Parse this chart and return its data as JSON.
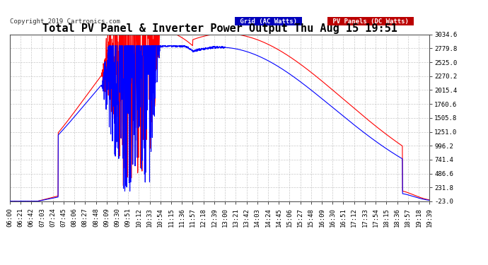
{
  "title": "Total PV Panel & Inverter Power Output Thu Aug 15 19:51",
  "copyright": "Copyright 2019 Cartronics.com",
  "legend_grid": "Grid (AC Watts)",
  "legend_pv": "PV Panels (DC Watts)",
  "grid_color": "#0000FF",
  "pv_color": "#FF0000",
  "background_color": "#ffffff",
  "plot_bg_color": "#ffffff",
  "grid_line_color": "#bbbbbb",
  "yticks": [
    -23.0,
    231.8,
    486.6,
    741.4,
    996.2,
    1251.0,
    1505.8,
    1760.6,
    2015.4,
    2270.2,
    2525.0,
    2779.8,
    3034.6
  ],
  "ymin": -23.0,
  "ymax": 3034.6,
  "title_fontsize": 11,
  "tick_fontsize": 6.5,
  "line_width": 0.8,
  "xtick_labels": [
    "06:00",
    "06:21",
    "06:42",
    "07:03",
    "07:24",
    "07:45",
    "08:06",
    "08:27",
    "08:48",
    "09:09",
    "09:30",
    "09:51",
    "10:12",
    "10:33",
    "10:54",
    "11:15",
    "11:36",
    "11:57",
    "12:18",
    "12:39",
    "13:00",
    "13:21",
    "13:42",
    "14:03",
    "14:24",
    "14:45",
    "15:06",
    "15:27",
    "15:48",
    "16:09",
    "16:30",
    "16:51",
    "17:12",
    "17:33",
    "17:54",
    "18:15",
    "18:36",
    "18:57",
    "19:18",
    "19:39"
  ]
}
